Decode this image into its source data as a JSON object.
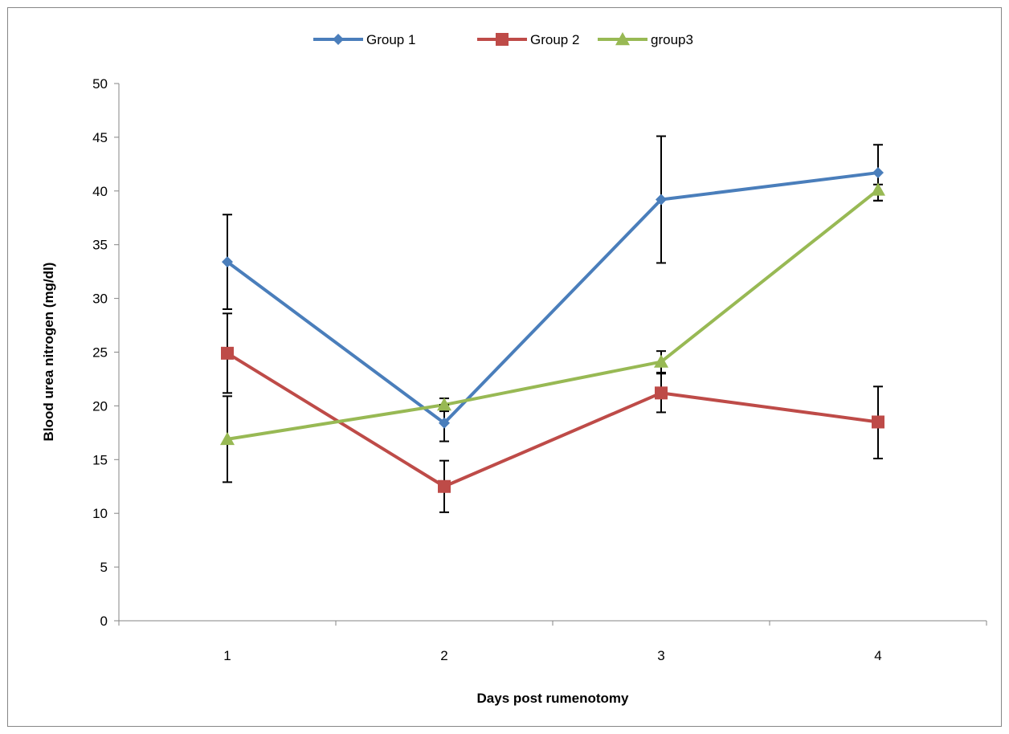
{
  "chart_data": {
    "type": "line",
    "categories": [
      "1",
      "2",
      "3",
      "4"
    ],
    "xlabel": "Days post rumenotomy",
    "ylabel": "Blood urea nitrogen (mg/dl)",
    "ylim": [
      0,
      50
    ],
    "yticks": [
      "0",
      "5",
      "10",
      "15",
      "20",
      "25",
      "30",
      "35",
      "40",
      "45",
      "50"
    ],
    "legend_position": "top",
    "grid": false,
    "series": [
      {
        "name": "Group 1",
        "color": "#4A7EBB",
        "marker": "diamond",
        "values": [
          33.4,
          18.4,
          39.2,
          41.7
        ],
        "error_high": [
          37.8,
          20.1,
          45.1,
          44.3
        ],
        "error_low": [
          29.0,
          16.7,
          33.3,
          39.1
        ]
      },
      {
        "name": "Group 2",
        "color": "#BE4B48",
        "marker": "square",
        "values": [
          24.9,
          12.5,
          21.2,
          18.5
        ],
        "error_high": [
          28.6,
          14.9,
          23.0,
          21.8
        ],
        "error_low": [
          21.2,
          10.1,
          19.4,
          15.1
        ]
      },
      {
        "name": "group3",
        "color": "#98B954",
        "marker": "triangle",
        "values": [
          16.9,
          20.1,
          24.1,
          40.1
        ],
        "error_high": [
          20.9,
          20.7,
          25.1,
          40.6
        ],
        "error_low": [
          12.9,
          19.5,
          23.1,
          39.1
        ]
      }
    ]
  }
}
